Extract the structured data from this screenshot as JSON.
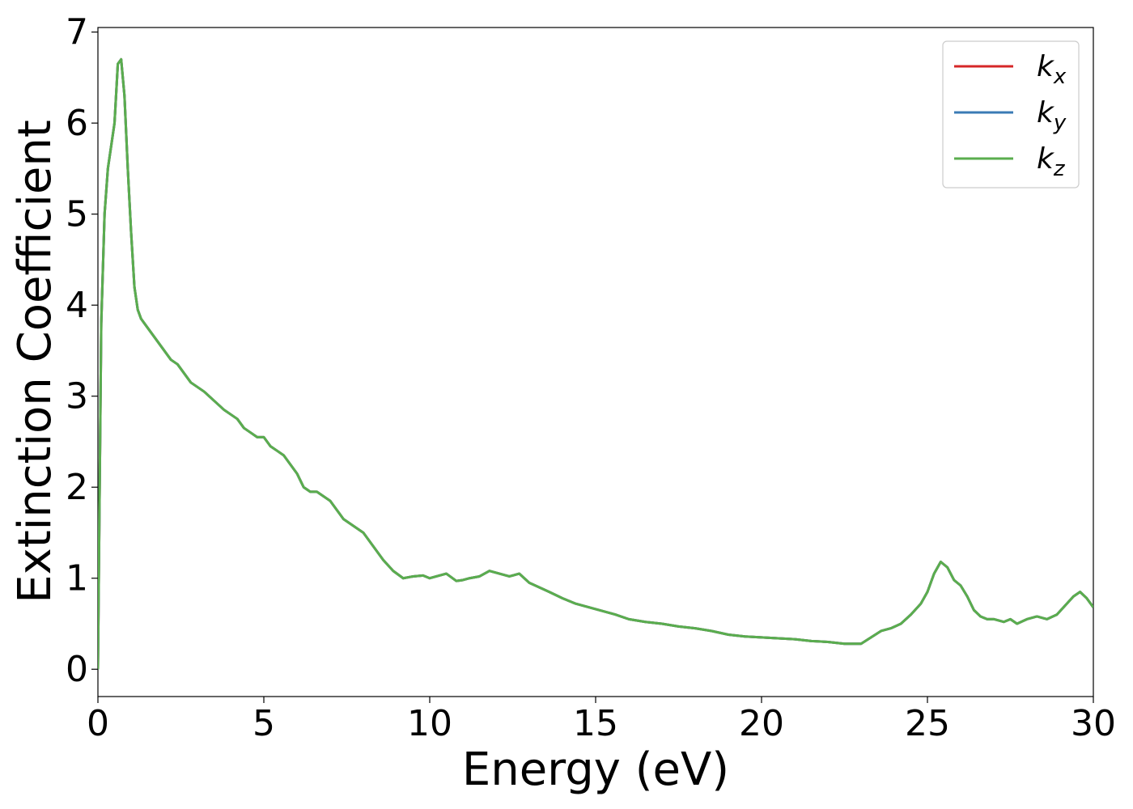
{
  "chart_data": {
    "type": "line",
    "title": "",
    "xlabel": "Energy (eV)",
    "ylabel": "Extinction Coefficient",
    "xlim": [
      0,
      30
    ],
    "ylim": [
      -0.3,
      7.05
    ],
    "xticks": [
      0,
      5,
      10,
      15,
      20,
      25,
      30
    ],
    "yticks": [
      0,
      1,
      2,
      3,
      4,
      5,
      6,
      7
    ],
    "xtick_labels": [
      "0",
      "5",
      "10",
      "15",
      "20",
      "25",
      "30"
    ],
    "ytick_labels": [
      "0",
      "1",
      "2",
      "3",
      "4",
      "5",
      "6",
      "7"
    ],
    "grid": false,
    "legend_position": "top-right",
    "x": [
      0,
      0.1,
      0.2,
      0.3,
      0.4,
      0.5,
      0.6,
      0.7,
      0.8,
      0.9,
      1.0,
      1.1,
      1.2,
      1.3,
      1.4,
      1.5,
      1.7,
      2.0,
      2.2,
      2.4,
      2.6,
      2.8,
      3.0,
      3.2,
      3.5,
      3.8,
      4.0,
      4.2,
      4.4,
      4.6,
      4.8,
      5.0,
      5.2,
      5.4,
      5.6,
      5.8,
      6.0,
      6.2,
      6.4,
      6.6,
      6.8,
      7.0,
      7.2,
      7.4,
      7.6,
      7.8,
      8.0,
      8.3,
      8.6,
      8.9,
      9.2,
      9.5,
      9.8,
      10.0,
      10.2,
      10.5,
      10.8,
      11.0,
      11.2,
      11.5,
      11.8,
      12.1,
      12.4,
      12.7,
      13.0,
      13.3,
      13.6,
      14.0,
      14.4,
      14.8,
      15.2,
      15.6,
      16.0,
      16.5,
      17.0,
      17.5,
      18.0,
      18.5,
      19.0,
      19.5,
      20.0,
      20.5,
      21.0,
      21.5,
      22.0,
      22.5,
      22.8,
      23.0,
      23.3,
      23.6,
      23.9,
      24.2,
      24.5,
      24.8,
      25.0,
      25.2,
      25.4,
      25.6,
      25.8,
      26.0,
      26.2,
      26.4,
      26.6,
      26.8,
      27.0,
      27.3,
      27.5,
      27.7,
      28.0,
      28.3,
      28.6,
      28.9,
      29.2,
      29.4,
      29.6,
      29.8,
      30.0
    ],
    "series": [
      {
        "name": "k_x",
        "color": "#d62728",
        "values": [
          0.0,
          3.8,
          5.0,
          5.5,
          5.75,
          6.0,
          6.65,
          6.7,
          6.3,
          5.5,
          4.8,
          4.2,
          3.95,
          3.85,
          3.8,
          3.75,
          3.65,
          3.5,
          3.4,
          3.35,
          3.25,
          3.15,
          3.1,
          3.05,
          2.95,
          2.85,
          2.8,
          2.75,
          2.65,
          2.6,
          2.55,
          2.55,
          2.45,
          2.4,
          2.35,
          2.25,
          2.15,
          2.0,
          1.95,
          1.95,
          1.9,
          1.85,
          1.75,
          1.65,
          1.6,
          1.55,
          1.5,
          1.35,
          1.2,
          1.08,
          1.0,
          1.02,
          1.03,
          1.0,
          1.02,
          1.05,
          0.97,
          0.98,
          1.0,
          1.02,
          1.08,
          1.05,
          1.02,
          1.05,
          0.95,
          0.9,
          0.85,
          0.78,
          0.72,
          0.68,
          0.64,
          0.6,
          0.55,
          0.52,
          0.5,
          0.47,
          0.45,
          0.42,
          0.38,
          0.36,
          0.35,
          0.34,
          0.33,
          0.31,
          0.3,
          0.28,
          0.28,
          0.28,
          0.35,
          0.42,
          0.45,
          0.5,
          0.6,
          0.72,
          0.85,
          1.05,
          1.18,
          1.12,
          0.98,
          0.92,
          0.8,
          0.65,
          0.58,
          0.55,
          0.55,
          0.52,
          0.55,
          0.5,
          0.55,
          0.58,
          0.55,
          0.6,
          0.72,
          0.8,
          0.85,
          0.78,
          0.68
        ]
      },
      {
        "name": "k_y",
        "color": "#3a7bb5",
        "values": [
          0.0,
          3.8,
          5.0,
          5.5,
          5.75,
          6.0,
          6.65,
          6.7,
          6.3,
          5.5,
          4.8,
          4.2,
          3.95,
          3.85,
          3.8,
          3.75,
          3.65,
          3.5,
          3.4,
          3.35,
          3.25,
          3.15,
          3.1,
          3.05,
          2.95,
          2.85,
          2.8,
          2.75,
          2.65,
          2.6,
          2.55,
          2.55,
          2.45,
          2.4,
          2.35,
          2.25,
          2.15,
          2.0,
          1.95,
          1.95,
          1.9,
          1.85,
          1.75,
          1.65,
          1.6,
          1.55,
          1.5,
          1.35,
          1.2,
          1.08,
          1.0,
          1.02,
          1.03,
          1.0,
          1.02,
          1.05,
          0.97,
          0.98,
          1.0,
          1.02,
          1.08,
          1.05,
          1.02,
          1.05,
          0.95,
          0.9,
          0.85,
          0.78,
          0.72,
          0.68,
          0.64,
          0.6,
          0.55,
          0.52,
          0.5,
          0.47,
          0.45,
          0.42,
          0.38,
          0.36,
          0.35,
          0.34,
          0.33,
          0.31,
          0.3,
          0.28,
          0.28,
          0.28,
          0.35,
          0.42,
          0.45,
          0.5,
          0.6,
          0.72,
          0.85,
          1.05,
          1.18,
          1.12,
          0.98,
          0.92,
          0.8,
          0.65,
          0.58,
          0.55,
          0.55,
          0.52,
          0.55,
          0.5,
          0.55,
          0.58,
          0.55,
          0.6,
          0.72,
          0.8,
          0.85,
          0.78,
          0.68
        ]
      },
      {
        "name": "k_z",
        "color": "#5aad4e",
        "values": [
          0.0,
          3.8,
          5.0,
          5.5,
          5.75,
          6.0,
          6.65,
          6.7,
          6.3,
          5.5,
          4.8,
          4.2,
          3.95,
          3.85,
          3.8,
          3.75,
          3.65,
          3.5,
          3.4,
          3.35,
          3.25,
          3.15,
          3.1,
          3.05,
          2.95,
          2.85,
          2.8,
          2.75,
          2.65,
          2.6,
          2.55,
          2.55,
          2.45,
          2.4,
          2.35,
          2.25,
          2.15,
          2.0,
          1.95,
          1.95,
          1.9,
          1.85,
          1.75,
          1.65,
          1.6,
          1.55,
          1.5,
          1.35,
          1.2,
          1.08,
          1.0,
          1.02,
          1.03,
          1.0,
          1.02,
          1.05,
          0.97,
          0.98,
          1.0,
          1.02,
          1.08,
          1.05,
          1.02,
          1.05,
          0.95,
          0.9,
          0.85,
          0.78,
          0.72,
          0.68,
          0.64,
          0.6,
          0.55,
          0.52,
          0.5,
          0.47,
          0.45,
          0.42,
          0.38,
          0.36,
          0.35,
          0.34,
          0.33,
          0.31,
          0.3,
          0.28,
          0.28,
          0.28,
          0.35,
          0.42,
          0.45,
          0.5,
          0.6,
          0.72,
          0.85,
          1.05,
          1.18,
          1.12,
          0.98,
          0.92,
          0.8,
          0.65,
          0.58,
          0.55,
          0.55,
          0.52,
          0.55,
          0.5,
          0.55,
          0.58,
          0.55,
          0.6,
          0.72,
          0.8,
          0.85,
          0.78,
          0.68
        ]
      }
    ],
    "legend": [
      {
        "base": "k",
        "sub": "x",
        "color": "#d62728"
      },
      {
        "base": "k",
        "sub": "y",
        "color": "#3a7bb5"
      },
      {
        "base": "k",
        "sub": "z",
        "color": "#5aad4e"
      }
    ]
  }
}
